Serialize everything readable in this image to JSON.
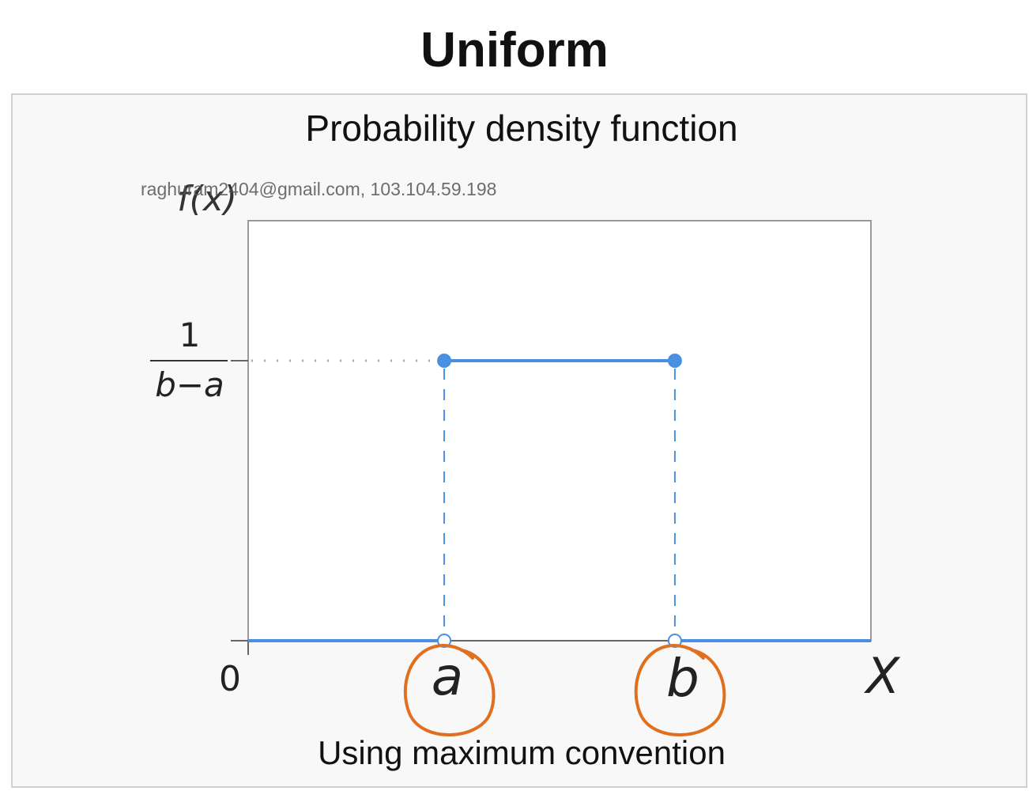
{
  "page_title": "Uniform",
  "watermark": "raghuram2404@gmail.com, 103.104.59.198",
  "colors": {
    "series": "#4a90e2",
    "annotation": "#e07020",
    "axis": "#666666",
    "frame_bg": "#f8f8f8"
  },
  "chart_data": {
    "type": "line",
    "title": "Probability density function",
    "subtitle": "Using maximum convention",
    "ylabel": "f(x)",
    "xlabel": "X",
    "x_ticks": [
      "0",
      "a",
      "b"
    ],
    "y_tick": {
      "numerator": "1",
      "denominator": "b−a"
    },
    "xlim": [
      -0.85,
      1.85
    ],
    "ylim": [
      0,
      1.5
    ],
    "series": [
      {
        "segments": [
          [
            [
              -0.85,
              0
            ],
            [
              0,
              0
            ]
          ],
          [
            [
              0,
              1
            ],
            [
              1,
              1
            ]
          ],
          [
            [
              1,
              0
            ],
            [
              1.85,
              0
            ]
          ]
        ]
      }
    ],
    "closed_points": [
      [
        0,
        1
      ],
      [
        1,
        1
      ]
    ],
    "open_points": [
      [
        0,
        0
      ],
      [
        1,
        0
      ]
    ],
    "annotations": [
      "circle around a",
      "circle around b"
    ]
  }
}
